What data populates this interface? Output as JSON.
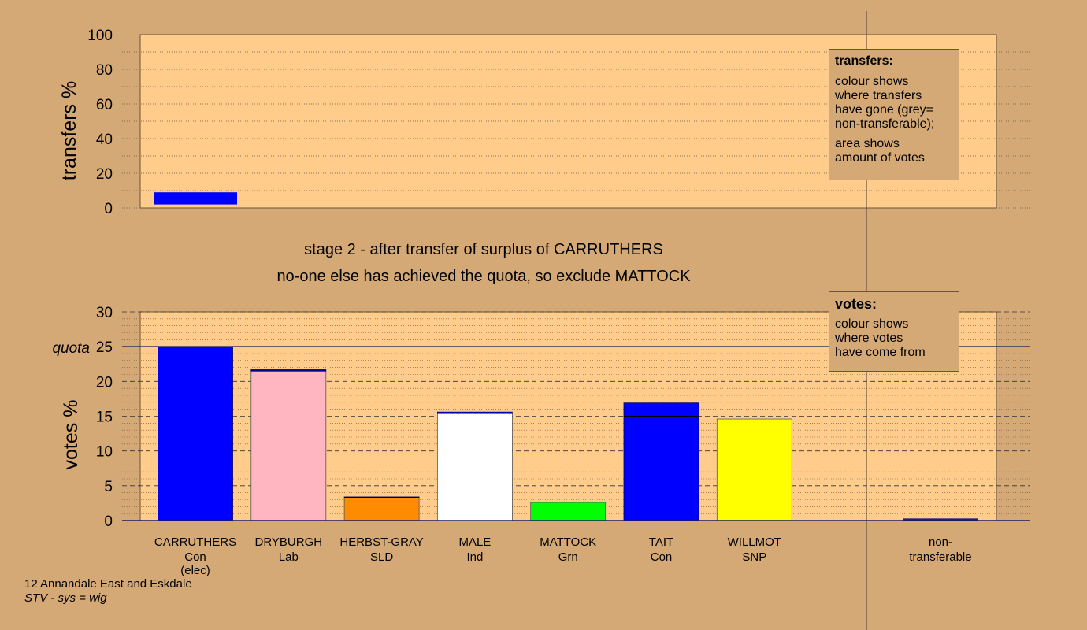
{
  "chart_data": [
    {
      "type": "bar",
      "ylabel": "transfers %",
      "ylim": [
        0,
        100
      ],
      "yticks": [
        0,
        20,
        40,
        60,
        80,
        100
      ],
      "bars": [
        {
          "candidate": "CARRUTHERS",
          "from": 2,
          "to": 9,
          "color": "#0000ff"
        }
      ]
    },
    {
      "type": "bar",
      "ylabel": "votes %",
      "ylim": [
        0,
        30
      ],
      "yticks": [
        0,
        5,
        10,
        15,
        20,
        25,
        30
      ],
      "quota": {
        "label": "quota",
        "value": 25
      },
      "categories": [
        {
          "name": "CARRUTHERS",
          "party": "Con",
          "note": "(elec)"
        },
        {
          "name": "DRYBURGH",
          "party": "Lab",
          "note": ""
        },
        {
          "name": "HERBST-GRAY",
          "party": "SLD",
          "note": ""
        },
        {
          "name": "MALE",
          "party": "Ind",
          "note": ""
        },
        {
          "name": "MATTOCK",
          "party": "Grn",
          "note": ""
        },
        {
          "name": "TAIT",
          "party": "Con",
          "note": ""
        },
        {
          "name": "WILLMOT",
          "party": "SNP",
          "note": ""
        }
      ],
      "nontransferable": {
        "line1": "non-",
        "line2": "transferable",
        "value": 0.3
      },
      "series": [
        {
          "base": 25.0,
          "added": 0.0,
          "color": "#0000ff"
        },
        {
          "base": 21.5,
          "added": 0.3,
          "color": "#ffb6c1"
        },
        {
          "base": 3.3,
          "added": 0.1,
          "color": "#ff8c00"
        },
        {
          "base": 15.4,
          "added": 0.2,
          "color": "#ffffff"
        },
        {
          "base": 2.6,
          "added": 0.0,
          "color": "#00ff00"
        },
        {
          "base": 15.0,
          "added": 1.9,
          "color": "#0000ff"
        },
        {
          "base": 14.6,
          "added": 0.0,
          "color": "#ffff00"
        }
      ],
      "transfer_color": "#0000ff"
    }
  ],
  "stage": {
    "line1": "stage 2 - after transfer of surplus of CARRUTHERS",
    "line2": "no-one else has achieved the quota, so exclude MATTOCK"
  },
  "legend_transfers": {
    "title": "transfers:",
    "lines1": [
      "colour shows",
      "where transfers",
      "have gone (grey=",
      "non-transferable);"
    ],
    "lines2": [
      "area shows",
      "amount of votes"
    ]
  },
  "legend_votes": {
    "title": "votes:",
    "lines": [
      "colour shows",
      "where votes",
      "have come from"
    ]
  },
  "footer": {
    "ward": "12 Annandale East and Eskdale",
    "system": "STV - sys = wig"
  },
  "colors": {
    "background": "#d4a976",
    "plot_bg": "#ffcc8c"
  }
}
